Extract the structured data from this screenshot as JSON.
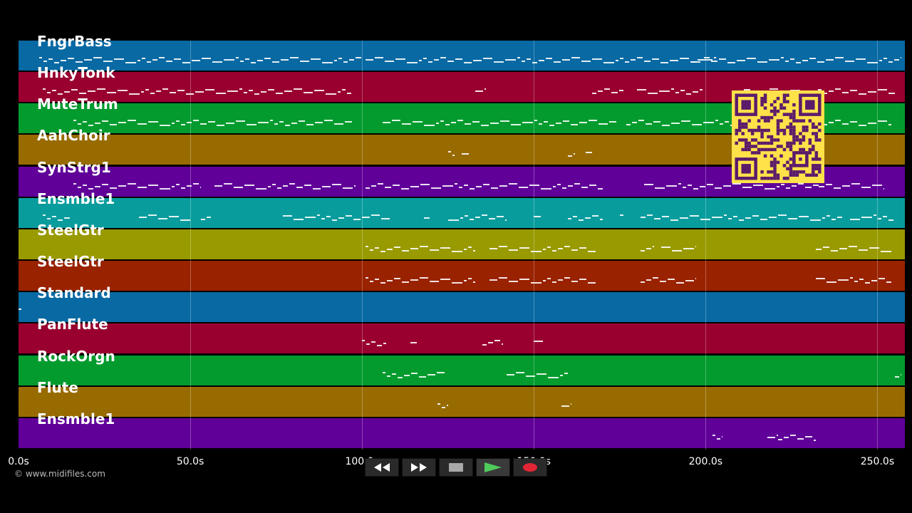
{
  "colors": {
    "track_palette": [
      "#0869a3",
      "#99002f",
      "#039b2e",
      "#986b00",
      "#600099",
      "#099c9d",
      "#999900",
      "#992200"
    ],
    "qr_bg": "#ffe14a",
    "qr_fg": "#5a1b6b",
    "play_icon": "#4ecb5b",
    "record_icon": "#e22636"
  },
  "tracks": [
    {
      "name": "FngrBass",
      "color": "#0869a3"
    },
    {
      "name": "HnkyTonk",
      "color": "#99002f"
    },
    {
      "name": "MuteTrum",
      "color": "#039b2e"
    },
    {
      "name": "AahChoir",
      "color": "#986b00"
    },
    {
      "name": "SynStrg1",
      "color": "#600099"
    },
    {
      "name": "Ensmble1",
      "color": "#099c9d"
    },
    {
      "name": "SteelGtr",
      "color": "#999900"
    },
    {
      "name": "SteelGtr",
      "color": "#992200"
    },
    {
      "name": "Standard",
      "color": "#0869a3"
    },
    {
      "name": "PanFlute",
      "color": "#99002f"
    },
    {
      "name": "RockOrgn",
      "color": "#039b2e"
    },
    {
      "name": "Flute",
      "color": "#986b00"
    },
    {
      "name": "Ensmble1",
      "color": "#600099"
    }
  ],
  "timeline": {
    "duration_s": 258,
    "ticks": [
      {
        "label": "0.0s",
        "t": 0
      },
      {
        "label": "50.0s",
        "t": 50
      },
      {
        "label": "100.0s",
        "t": 100
      },
      {
        "label": "150.0s",
        "t": 150
      },
      {
        "label": "200.0s",
        "t": 200
      },
      {
        "label": "250.0s",
        "t": 250
      }
    ]
  },
  "notes": [
    [
      [
        6,
        100
      ],
      [
        101,
        203
      ],
      [
        196,
        257
      ]
    ],
    [
      [
        7,
        97
      ],
      [
        133,
        136
      ],
      [
        167,
        176
      ],
      [
        180,
        199
      ],
      [
        209,
        255
      ]
    ],
    [
      [
        16,
        97
      ],
      [
        106,
        174
      ],
      [
        177,
        254
      ]
    ],
    [
      [
        125,
        127
      ],
      [
        129,
        131
      ],
      [
        160,
        162
      ],
      [
        165,
        167
      ]
    ],
    [
      [
        16,
        53
      ],
      [
        57,
        98
      ],
      [
        101,
        170
      ],
      [
        182,
        233
      ],
      [
        233,
        252
      ]
    ],
    [
      [
        7,
        15
      ],
      [
        35,
        50
      ],
      [
        53,
        56
      ],
      [
        77,
        108
      ],
      [
        118,
        120
      ],
      [
        125,
        142
      ],
      [
        150,
        152
      ],
      [
        160,
        170
      ],
      [
        175,
        176
      ],
      [
        181,
        240
      ],
      [
        242,
        255
      ]
    ],
    [
      [
        101,
        133
      ],
      [
        137,
        168
      ],
      [
        181,
        185
      ],
      [
        187,
        197
      ],
      [
        232,
        254
      ]
    ],
    [
      [
        101,
        133
      ],
      [
        137,
        168
      ],
      [
        181,
        197
      ],
      [
        232,
        254
      ]
    ],
    [
      [
        0,
        1
      ]
    ],
    [
      [
        100,
        107
      ],
      [
        114,
        116
      ],
      [
        135,
        141
      ],
      [
        150,
        153
      ]
    ],
    [
      [
        106,
        124
      ],
      [
        142,
        160
      ],
      [
        255,
        257
      ]
    ],
    [
      [
        122,
        125
      ],
      [
        158,
        161
      ]
    ],
    [
      [
        202,
        205
      ],
      [
        218,
        221
      ],
      [
        221,
        232
      ]
    ]
  ],
  "controls": {
    "rewind_icon": "rewind-icon",
    "fast_forward_icon": "fast-forward-icon",
    "stop_icon": "stop-icon",
    "play_icon": "play-icon",
    "record_icon": "record-icon"
  },
  "copyright": "© www.midifiles.com"
}
